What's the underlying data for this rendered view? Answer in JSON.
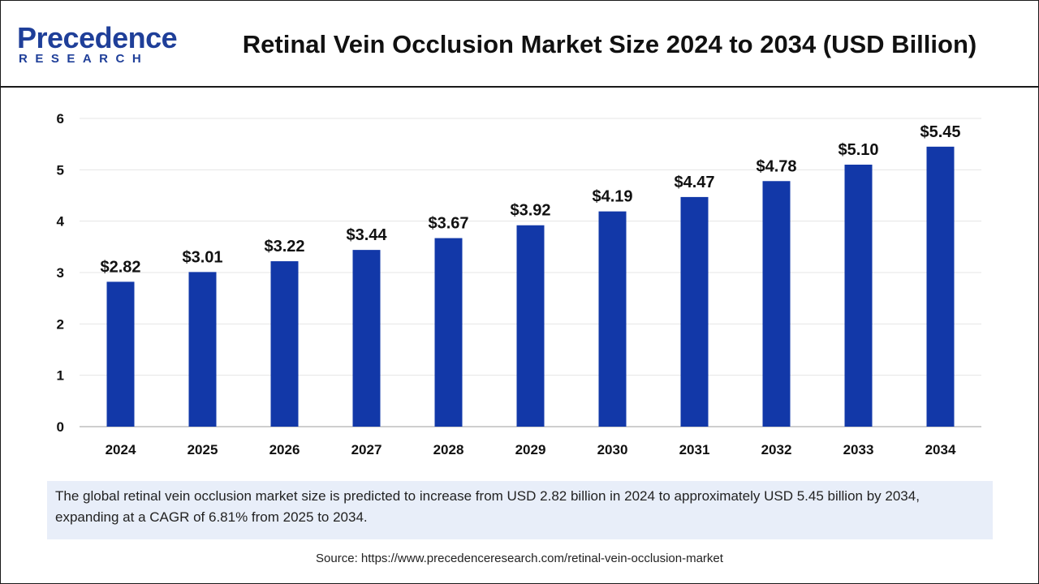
{
  "header": {
    "logo_word": "Precedence",
    "logo_sub": "RESEARCH",
    "title": "Retinal Vein Occlusion Market Size 2024 to 2034 (USD Billion)"
  },
  "colors": {
    "bar": "#1238a8",
    "logo": "#1f3f99",
    "caption_bg": "#e8eef9"
  },
  "chart_data": {
    "type": "bar",
    "title": "Retinal Vein Occlusion Market Size 2024 to 2034 (USD Billion)",
    "categories": [
      "2024",
      "2025",
      "2026",
      "2027",
      "2028",
      "2029",
      "2030",
      "2031",
      "2032",
      "2033",
      "2034"
    ],
    "values": [
      2.82,
      3.01,
      3.22,
      3.44,
      3.67,
      3.92,
      4.19,
      4.47,
      4.78,
      5.1,
      5.45
    ],
    "data_labels": [
      "$2.82",
      "$3.01",
      "$3.22",
      "$3.44",
      "$3.67",
      "$3.92",
      "$4.19",
      "$4.47",
      "$4.78",
      "$5.10",
      "$5.45"
    ],
    "yticks": [
      "0",
      "1",
      "2",
      "3",
      "4",
      "5",
      "6"
    ],
    "ylim": [
      0,
      6
    ],
    "xlabel": "",
    "ylabel": "",
    "grid": true,
    "legend": "none"
  },
  "caption": "The global retinal vein occlusion market size is predicted to increase from USD 2.82 billion in 2024 to approximately USD 5.45 billion by 2034, expanding at a CAGR of 6.81% from 2025 to 2034.",
  "source": "Source: https://www.precedenceresearch.com/retinal-vein-occlusion-market"
}
